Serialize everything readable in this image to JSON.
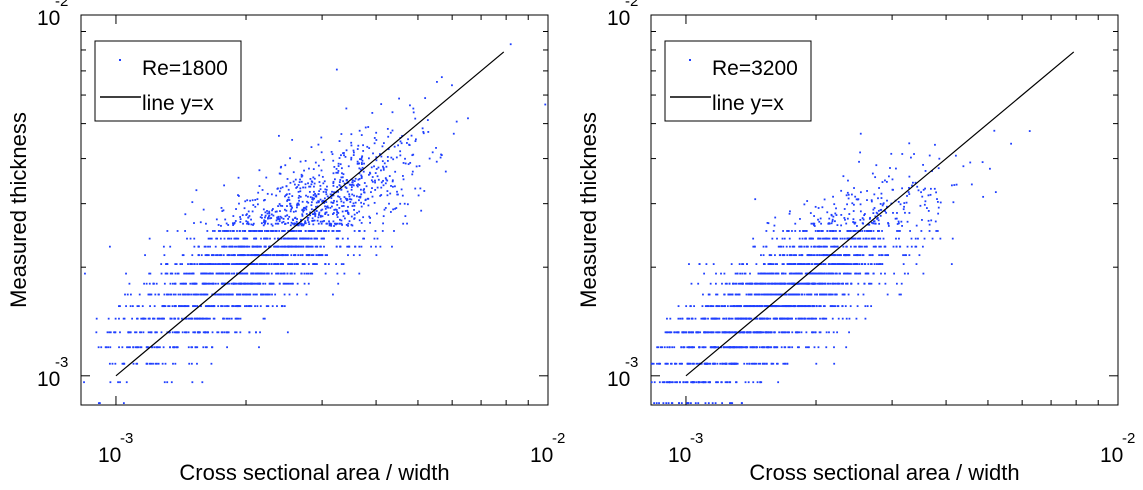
{
  "chart_data": [
    {
      "type": "scatter",
      "xlabel": "Cross sectional area / width",
      "ylabel": "Measured thickness",
      "xscale": "log",
      "yscale": "log",
      "xlim": [
        0.00083,
        0.01
      ],
      "ylim": [
        0.00083,
        0.01
      ],
      "x_ticks": [
        {
          "base": "10",
          "exp": "-3"
        },
        {
          "base": "10",
          "exp": "-2"
        }
      ],
      "y_ticks": [
        {
          "base": "10",
          "exp": "-3"
        },
        {
          "base": "10",
          "exp": "-2"
        }
      ],
      "legend_position": "top-left",
      "grid": false,
      "series": [
        {
          "name": "Re=1800",
          "label": "Re=1800",
          "marker": "dot",
          "color": "#1f3fff",
          "cloud": {
            "x_center": 0.00225,
            "x_spread_decades": 0.17,
            "slope": 0.72,
            "y_center": 0.00228,
            "y_noise_decades": 0.085,
            "count": 2200
          }
        },
        {
          "name": "line y=x",
          "label": "line y=x",
          "marker": "line",
          "color": "#000000",
          "x": [
            0.001,
            0.0079
          ],
          "y": [
            0.001,
            0.0079
          ]
        }
      ]
    },
    {
      "type": "scatter",
      "xlabel": "Cross sectional area / width",
      "ylabel": "Measured thickness",
      "xscale": "log",
      "yscale": "log",
      "xlim": [
        0.00083,
        0.01
      ],
      "ylim": [
        0.00083,
        0.01
      ],
      "x_ticks": [
        {
          "base": "10",
          "exp": "-3"
        },
        {
          "base": "10",
          "exp": "-2"
        }
      ],
      "y_ticks": [
        {
          "base": "10",
          "exp": "-3"
        },
        {
          "base": "10",
          "exp": "-2"
        }
      ],
      "legend_position": "top-left",
      "grid": false,
      "series": [
        {
          "name": "Re=3200",
          "label": "Re=3200",
          "marker": "dot",
          "color": "#1f3fff",
          "cloud": {
            "x_center": 0.0017,
            "x_spread_decades": 0.16,
            "slope": 0.75,
            "y_center": 0.00168,
            "y_noise_decades": 0.085,
            "count": 2200
          }
        },
        {
          "name": "line y=x",
          "label": "line y=x",
          "marker": "line",
          "color": "#000000",
          "x": [
            0.001,
            0.0079
          ],
          "y": [
            0.001,
            0.0079
          ]
        }
      ]
    }
  ]
}
